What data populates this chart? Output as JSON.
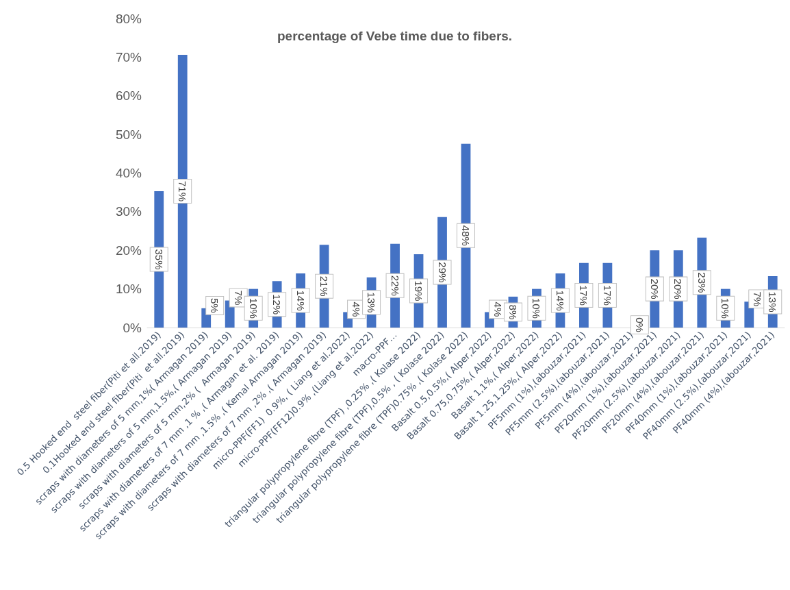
{
  "chart_data": {
    "type": "bar",
    "title": "percentage of Vebe time due to fibers.",
    "categories": [
      "0.5 Hooked end  steel fiber(Piti et all.2019)",
      "0.1Hooked end steel fiber(Piti  et all.2019)",
      "scraps with diameters of 5 mm,1%( Armagan 2019)",
      "scraps with diameters of 5 mm,1.5%,( Armagan 2019)",
      "scraps with diameters of 5 mm,2% (  Armagan 2019)",
      "scraps with diameters of 7 mm ,1 % ,( Armagan et al. 2019)",
      "scraps with diameters of 7 mm ,1.5% ,( Kemal Armagan 2019)",
      "scraps with diameters of 7 mm ,2% ,( Armagan 2019)",
      "micro-PPF(FF1)  0.9%, ( Liang et al.2022)",
      "micro-PPF(FF12)0.9% ,(Liang et al.2022)",
      "macro-PPF…",
      "triangular polypropylene fibre (TPF) ,0.25% ,( Kolase 2022)",
      "triangular polypropylene fibre (TPF),0.5% , ( Kolase 2022)",
      "triangular polypropylene fibre (TPF)0.75% ,( Kolase 2022)",
      "Basalt 0.5,0.5%,( Alper,2022)",
      "Basalt 0.75,0.75%,( Alper,2022)",
      "Basalt 1,1%,( Alper,2022)",
      "Basalt 1.25,1.25%,( Alper,2022)",
      "PF5mm (1%),(abouzar,2021)",
      "PF5mm (2.5%),(abouzar,2021)",
      "PF5mm (4%),(abouzar,2021)",
      "PF20mm (1%),(abouzar,2021)",
      "PF20mm (2.5%),(abouzar,2021)",
      "PF20mm (4%),(abouzar,2021)",
      "PF40mm (1%),(abouzar,2021)",
      "PF40mm (2.5%),(abouzar,2021)",
      "PF40mm (4%),(abouzar,2021)"
    ],
    "values": [
      35.3,
      70.6,
      5,
      7,
      10,
      12,
      14,
      21.4,
      4,
      13,
      21.7,
      19,
      28.6,
      47.6,
      4,
      8,
      10,
      14,
      16.7,
      16.7,
      0,
      20,
      20,
      23.3,
      10,
      6.7,
      13.3
    ],
    "value_labels": [
      "35%",
      "71%",
      "5%",
      "7%",
      "10%",
      "12%",
      "14%",
      "21%",
      "4%",
      "13%",
      "22%",
      "19%",
      "29%",
      "48%",
      "4%",
      "8%",
      "10%",
      "14%",
      "17%",
      "17%",
      "0%",
      "20%",
      "20%",
      "23%",
      "10%",
      "7%",
      "13%"
    ],
    "color": "#4472c4",
    "ylim": [
      0,
      80
    ],
    "yticks": [
      {
        "value": 0,
        "label": "0%"
      },
      {
        "value": 10,
        "label": "10%"
      },
      {
        "value": 20,
        "label": "20%"
      },
      {
        "value": 30,
        "label": "30%"
      },
      {
        "value": 40,
        "label": "40%"
      },
      {
        "value": 50,
        "label": "50%"
      },
      {
        "value": 60,
        "label": "60%"
      },
      {
        "value": 70,
        "label": "70%"
      },
      {
        "value": 80,
        "label": "80%"
      }
    ]
  }
}
